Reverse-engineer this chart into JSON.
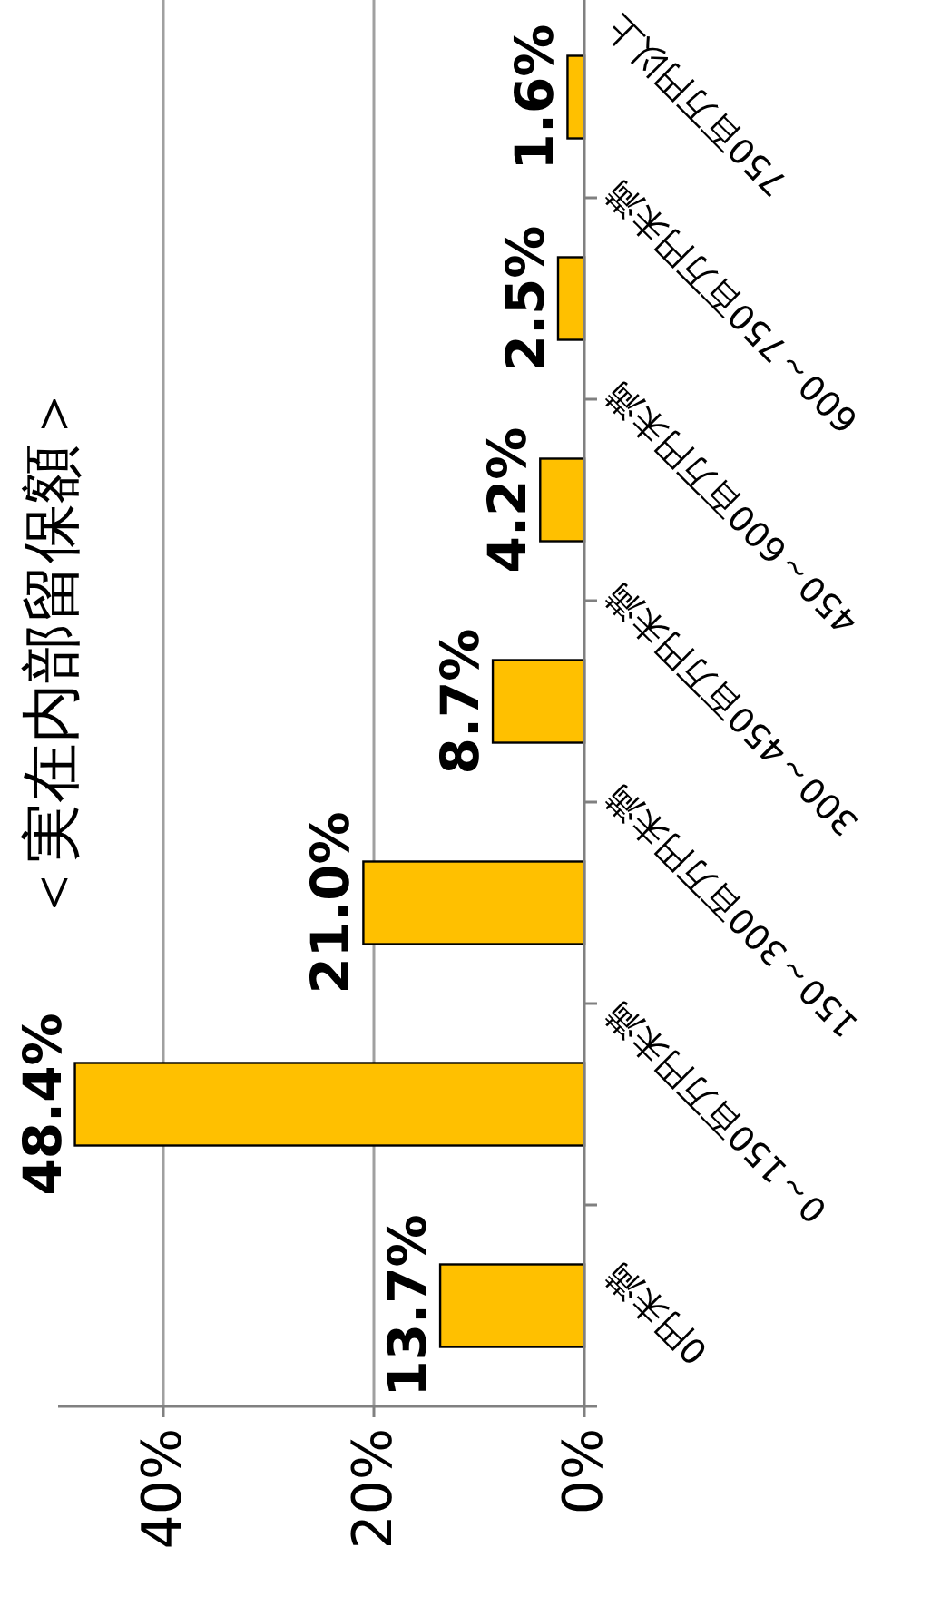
{
  "chart_data": {
    "type": "bar",
    "orientation": "horizontal",
    "title": "＜実在内部留保額＞",
    "categories": [
      "750百万円以上",
      "600～750百万円未満",
      "450～600百万円未満",
      "300～450百万円未満",
      "150～300百万円未満",
      "0～150百万円未満",
      "0円未満"
    ],
    "values": [
      1.6,
      2.5,
      4.2,
      8.7,
      21.0,
      48.4,
      13.7
    ],
    "value_labels": [
      "1.6%",
      "2.5%",
      "4.2%",
      "8.7%",
      "21.0%",
      "48.4%",
      "13.7%"
    ],
    "color": "#ffc000",
    "xlim": [
      50,
      0
    ],
    "xticks": [
      {
        "value": 40,
        "label": "40%"
      },
      {
        "value": 20,
        "label": "20%"
      },
      {
        "value": 0,
        "label": "0%"
      }
    ],
    "grid": "x"
  }
}
